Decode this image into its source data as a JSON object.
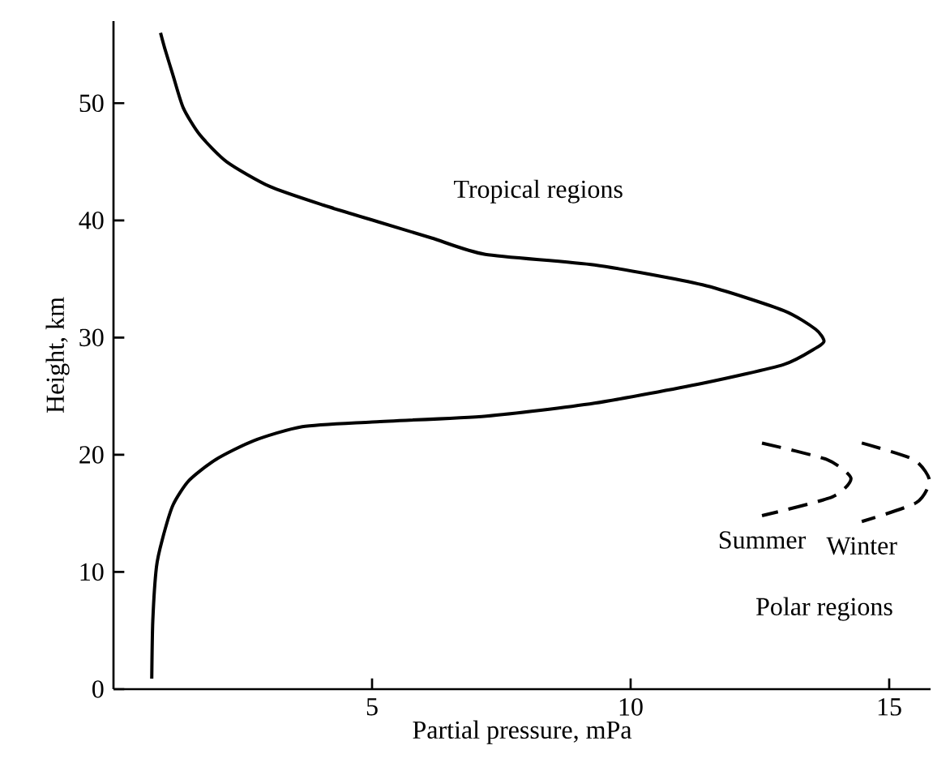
{
  "chart_data": {
    "type": "line",
    "xlabel": "Partial pressure, mPa",
    "ylabel": "Height, km",
    "xlim": [
      0,
      15.8
    ],
    "ylim": [
      0,
      57
    ],
    "xticks": [
      5,
      10,
      15
    ],
    "yticks": [
      0,
      10,
      20,
      30,
      40,
      50
    ],
    "grid": false,
    "legend": false,
    "marker": "none",
    "annotations": [
      "Tropical regions",
      "Polar regions"
    ],
    "series": [
      {
        "color": "#000000",
        "line_style": "solid",
        "x": [
          0.74,
          0.76,
          0.83,
          0.94,
          1.15,
          1.46,
          1.98,
          2.71,
          3.65,
          5.0,
          7.21,
          9.3,
          11.39,
          12.96,
          13.58,
          13.74,
          13.58,
          12.96,
          11.39,
          9.3,
          7.19,
          6.15,
          5.1,
          4.06,
          3.02,
          2.19,
          1.67,
          1.35,
          1.15,
          0.99,
          0.91
        ],
        "values": [
          0.9,
          5.8,
          10.4,
          12.7,
          15.7,
          17.8,
          19.6,
          21.2,
          22.4,
          22.8,
          23.3,
          24.4,
          26.1,
          27.7,
          29.1,
          29.7,
          30.7,
          32.3,
          34.5,
          36.2,
          37.1,
          38.5,
          39.9,
          41.3,
          42.9,
          45.0,
          47.3,
          49.6,
          52.4,
          54.7,
          56.0
        ]
      },
      {
        "name": "Summer",
        "color": "#000000",
        "line_style": "dashed",
        "x": [
          12.54,
          13.79,
          14.26,
          13.9,
          12.54
        ],
        "values": [
          21.0,
          19.6,
          18.0,
          16.4,
          14.8
        ]
      },
      {
        "name": "Winter",
        "color": "#000000",
        "line_style": "dashed",
        "x": [
          14.47,
          15.47,
          15.78,
          15.52,
          14.47
        ],
        "values": [
          21.0,
          19.6,
          17.8,
          15.9,
          14.3
        ]
      }
    ]
  }
}
